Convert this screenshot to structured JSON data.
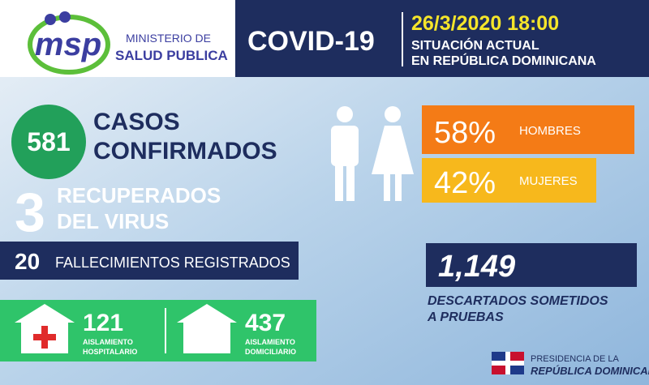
{
  "header": {
    "logo": "msp",
    "ministry": [
      "MINISTERIO DE",
      "SALUD PUBLICA"
    ],
    "title": "COVID-19",
    "datetime": "26/3/2020 18:00",
    "subtitle": [
      "SITUACIÓN ACTUAL",
      "EN REPÚBLICA DOMINICANA"
    ]
  },
  "confirmed": {
    "value": "581",
    "label": [
      "CASOS",
      "CONFIRMADOS"
    ]
  },
  "recovered": {
    "value": "3",
    "label": [
      "RECUPERADOS",
      "DEL VIRUS"
    ]
  },
  "deaths": {
    "value": "20",
    "label": "FALLECIMIENTOS REGISTRADOS"
  },
  "isolation": [
    {
      "value": "121",
      "label": [
        "AISLAMIENTO",
        "HOSPITALARIO"
      ]
    },
    {
      "value": "437",
      "label": [
        "AISLAMIENTO",
        "DOMICILIARIO"
      ]
    }
  ],
  "gender": [
    {
      "value": "58%",
      "label": "HOMBRES"
    },
    {
      "value": "42%",
      "label": "MUJERES"
    }
  ],
  "discarded": {
    "value": "1,149",
    "label": [
      "DESCARTADOS SOMETIDOS",
      "A PRUEBAS"
    ]
  },
  "footer": [
    "PRESIDENCIA DE LA",
    "REPÚBLICA DOMINICANA"
  ]
}
